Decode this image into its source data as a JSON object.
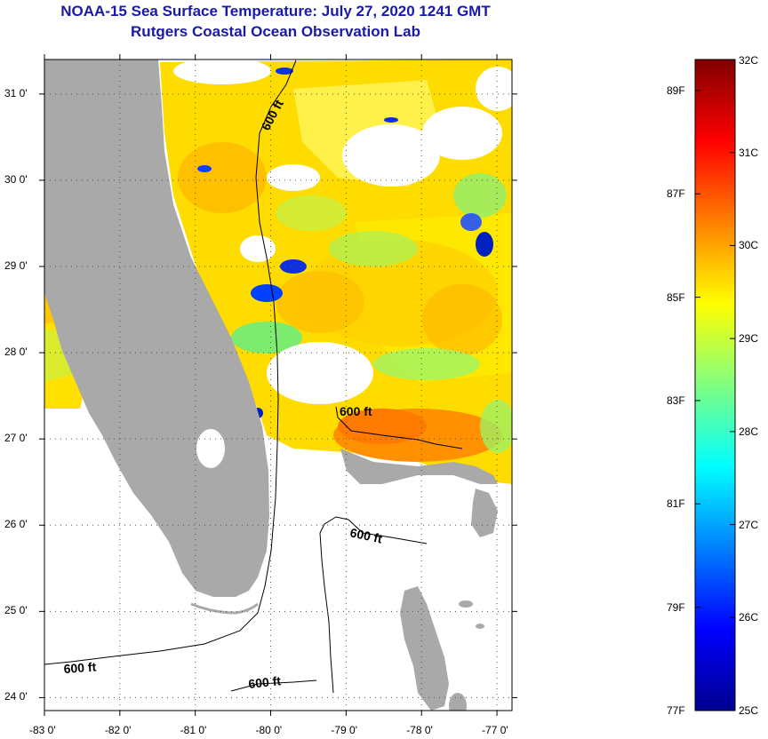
{
  "title_line1": "NOAA-15 Sea Surface Temperature:  July 27, 2020 1241 GMT",
  "title_line2": "Rutgers Coastal Ocean Observation Lab",
  "map": {
    "lon_range": [
      -83.0,
      -76.8
    ],
    "lat_range": [
      23.85,
      31.4
    ],
    "x_ticks": [
      "-83 0'",
      "-82 0'",
      "-81 0'",
      "-80 0'",
      "-79 0'",
      "-78 0'",
      "-77 0'"
    ],
    "y_ticks": [
      "31 0'",
      "30 0'",
      "29 0'",
      "28 0'",
      "27 0'",
      "26 0'",
      "25 0'",
      "24 0'"
    ],
    "contour_label": "600 ft",
    "land_color": "#a9a9a9",
    "nodata_color": "#ffffff"
  },
  "colorbar": {
    "celsius_labels": [
      "32C",
      "31C",
      "30C",
      "29C",
      "28C",
      "27C",
      "26C",
      "25C"
    ],
    "fahrenheit_labels": [
      "89F",
      "87F",
      "85F",
      "83F",
      "81F",
      "79F",
      "77F"
    ],
    "min_c": 25,
    "max_c": 32,
    "colors": [
      "#00008f",
      "#0000ff",
      "#0080ff",
      "#00ffff",
      "#80ff80",
      "#ffff00",
      "#ff8000",
      "#ff0000",
      "#800000"
    ]
  }
}
